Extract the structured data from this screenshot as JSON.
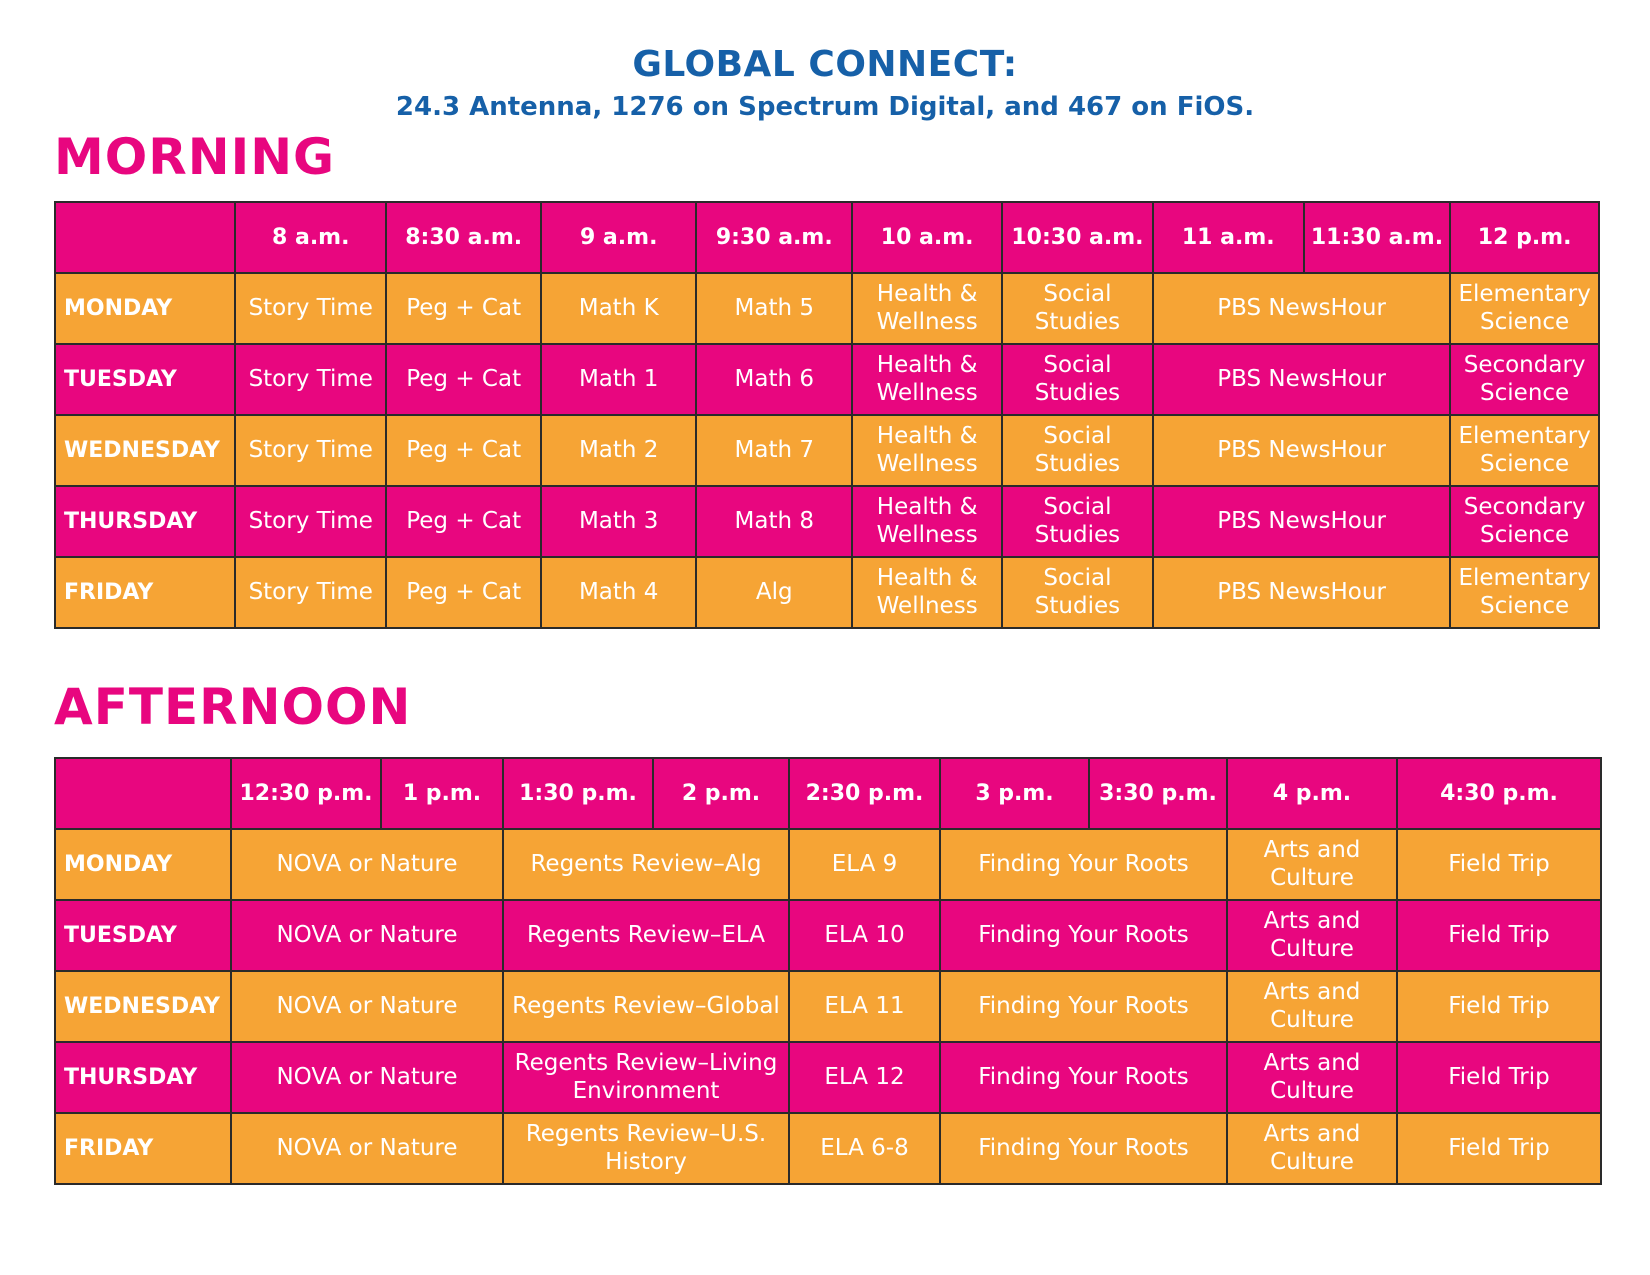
{
  "header": {
    "title": "GLOBAL CONNECT:",
    "subtitle": "24.3 Antenna, 1276 on Spectrum Digital, and 467 on FiOS."
  },
  "colors": {
    "title_blue": "#1660a8",
    "pink": "#e8067f",
    "orange": "#f6a435"
  },
  "morning": {
    "heading": "MORNING",
    "times": [
      "8 a.m.",
      "8:30 a.m.",
      "9 a.m.",
      "9:30 a.m.",
      "10 a.m.",
      "10:30 a.m.",
      "11 a.m.",
      "11:30 a.m.",
      "12 p.m."
    ],
    "rows": [
      {
        "day": "MONDAY",
        "c1": "Story Time",
        "c2": "Peg + Cat",
        "c3": "Math K",
        "c4": "Math 5",
        "c5": "Health & Wellness",
        "c6": "Social Studies",
        "c7": "PBS NewsHour",
        "c8": "Elementary Science"
      },
      {
        "day": "TUESDAY",
        "c1": "Story Time",
        "c2": "Peg + Cat",
        "c3": "Math 1",
        "c4": "Math 6",
        "c5": "Health & Wellness",
        "c6": "Social Studies",
        "c7": "PBS NewsHour",
        "c8": "Secondary Science"
      },
      {
        "day": "WEDNESDAY",
        "c1": "Story Time",
        "c2": "Peg + Cat",
        "c3": "Math 2",
        "c4": "Math 7",
        "c5": "Health & Wellness",
        "c6": "Social Studies",
        "c7": "PBS NewsHour",
        "c8": "Elementary Science"
      },
      {
        "day": "THURSDAY",
        "c1": "Story Time",
        "c2": "Peg + Cat",
        "c3": "Math 3",
        "c4": "Math 8",
        "c5": "Health & Wellness",
        "c6": "Social Studies",
        "c7": "PBS NewsHour",
        "c8": "Secondary Science"
      },
      {
        "day": "FRIDAY",
        "c1": "Story Time",
        "c2": "Peg + Cat",
        "c3": "Math 4",
        "c4": "Alg",
        "c5": "Health & Wellness",
        "c6": "Social Studies",
        "c7": "PBS NewsHour",
        "c8": "Elementary Science"
      }
    ]
  },
  "afternoon": {
    "heading": "AFTERNOON",
    "times": [
      "12:30 p.m.",
      "1 p.m.",
      "1:30 p.m.",
      "2 p.m.",
      "2:30 p.m.",
      "3 p.m.",
      "3:30 p.m.",
      "4 p.m.",
      "4:30 p.m."
    ],
    "rows": [
      {
        "day": "MONDAY",
        "c1": "NOVA or Nature",
        "c2": "Regents Review–Alg",
        "c3": "ELA 9",
        "c4": "Finding Your Roots",
        "c5": "Arts and Culture",
        "c6": "Field Trip"
      },
      {
        "day": "TUESDAY",
        "c1": "NOVA or Nature",
        "c2": "Regents Review–ELA",
        "c3": "ELA 10",
        "c4": "Finding Your Roots",
        "c5": "Arts and Culture",
        "c6": "Field Trip"
      },
      {
        "day": "WEDNESDAY",
        "c1": "NOVA or Nature",
        "c2": "Regents Review–Global",
        "c3": "ELA 11",
        "c4": "Finding Your Roots",
        "c5": "Arts and Culture",
        "c6": "Field Trip"
      },
      {
        "day": "THURSDAY",
        "c1": "NOVA or Nature",
        "c2": "Regents Review–Living Environment",
        "c3": "ELA 12",
        "c4": "Finding Your Roots",
        "c5": "Arts and Culture",
        "c6": "Field Trip"
      },
      {
        "day": "FRIDAY",
        "c1": "NOVA or Nature",
        "c2": "Regents Review–U.S. History",
        "c3": "ELA 6-8",
        "c4": "Finding Your Roots",
        "c5": "Arts and Culture",
        "c6": "Field Trip"
      }
    ]
  }
}
